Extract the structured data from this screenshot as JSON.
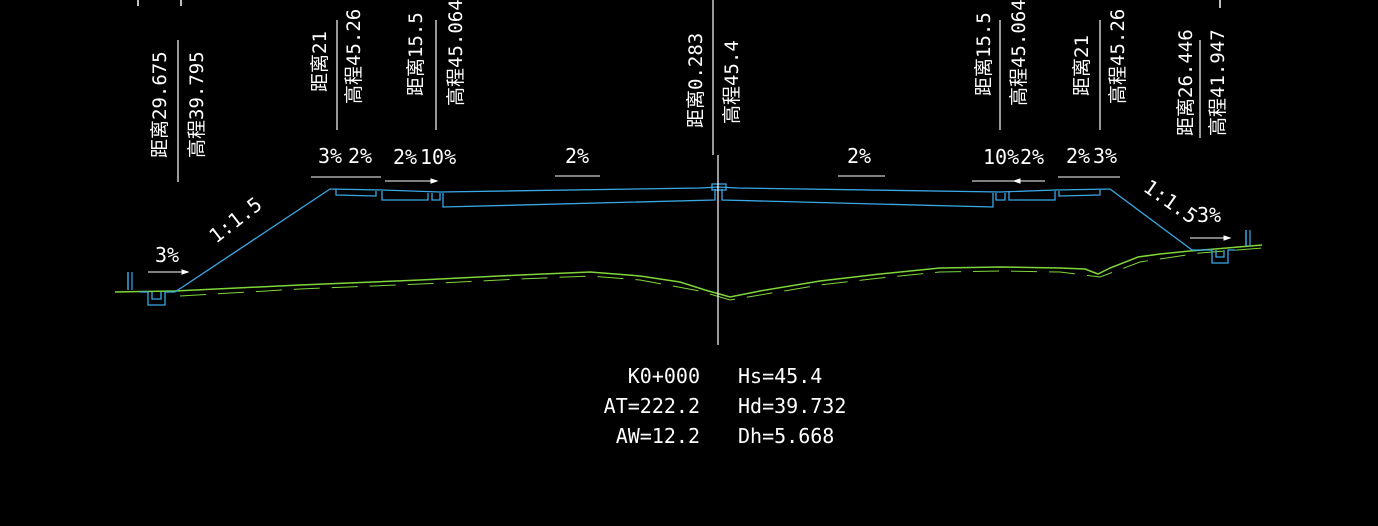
{
  "drawing": {
    "vertical_labels": {
      "left_toe": {
        "dist": "距离29.675",
        "elev": "高程39.795"
      },
      "left_shoulder": {
        "dist": "距离21",
        "elev": "高程45.26"
      },
      "left_inner": {
        "dist": "距离15.5",
        "elev": "高程45.064"
      },
      "centerline": {
        "dist": "距离0.283",
        "elev": "高程45.4"
      },
      "right_inner": {
        "dist": "距离15.5",
        "elev": "高程45.064"
      },
      "right_shoulder": {
        "dist": "距离21",
        "elev": "高程45.26"
      },
      "right_toe": {
        "dist": "距离26.446",
        "elev": "高程41.947"
      }
    },
    "slope_labels": {
      "left_ditch": "3%",
      "left_embankment": "1:1.5",
      "left_shoulder_a": "3%",
      "left_shoulder_b": "2%",
      "left_lane_a": "2%",
      "left_lane_b": "10%",
      "left_carriageway": "2%",
      "right_carriageway": "2%",
      "right_lane_a": "10%",
      "right_lane_b": "2%",
      "right_shoulder_a": "2%",
      "right_shoulder_b": "3%",
      "right_embankment": "1:1.5",
      "right_ditch": "3%"
    },
    "colors": {
      "background": "#000000",
      "design_section": "#3ba8e6",
      "ground_line": "#7fd63a",
      "text": "#ffffff"
    }
  },
  "station_info": {
    "station": "K0+000",
    "at": "AT=222.2",
    "aw": "AW=12.2",
    "hs": "Hs=45.4",
    "hd": "Hd=39.732",
    "dh": "Dh=5.668"
  }
}
